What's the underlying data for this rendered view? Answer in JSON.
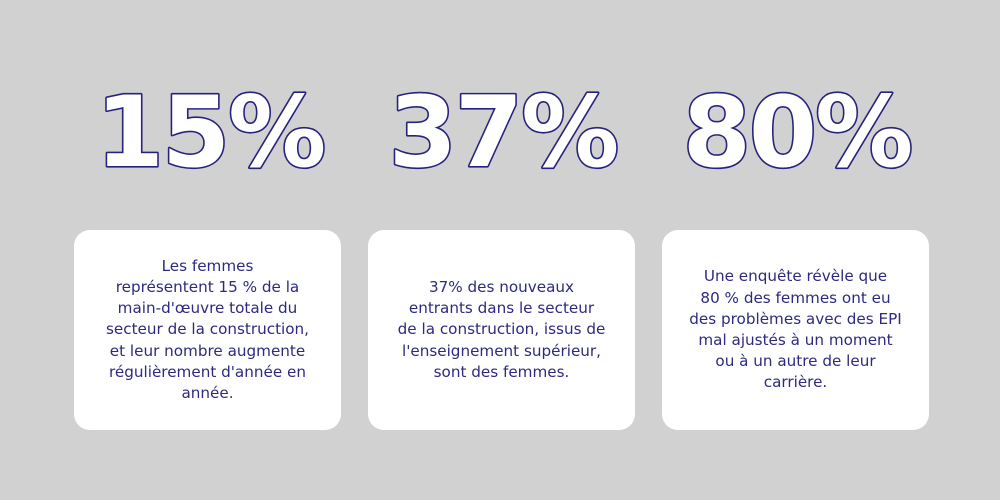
{
  "stats": [
    {
      "value": "15%",
      "text": "Les femmes\nreprésentent 15 % de la\nmain-d'œuvre totale du\nsecteur de la construction,\net leur nombre augmente\nrégulièrement d'année en\nannée."
    },
    {
      "value": "37%",
      "text": "37% des nouveaux\nentrants dans le secteur\nde la construction, issus de\nl'enseignement supérieur,\nsont des femmes."
    },
    {
      "value": "80%",
      "text": "Une enquête révèle que\n80 % des femmes ont eu\ndes problèmes avec des EPI\nmal ajustés à un moment\nou à un autre de leur\ncarrière."
    }
  ],
  "colors": {
    "background": "#d1d1d1",
    "accent": "#26237f",
    "card": "#ffffff"
  }
}
